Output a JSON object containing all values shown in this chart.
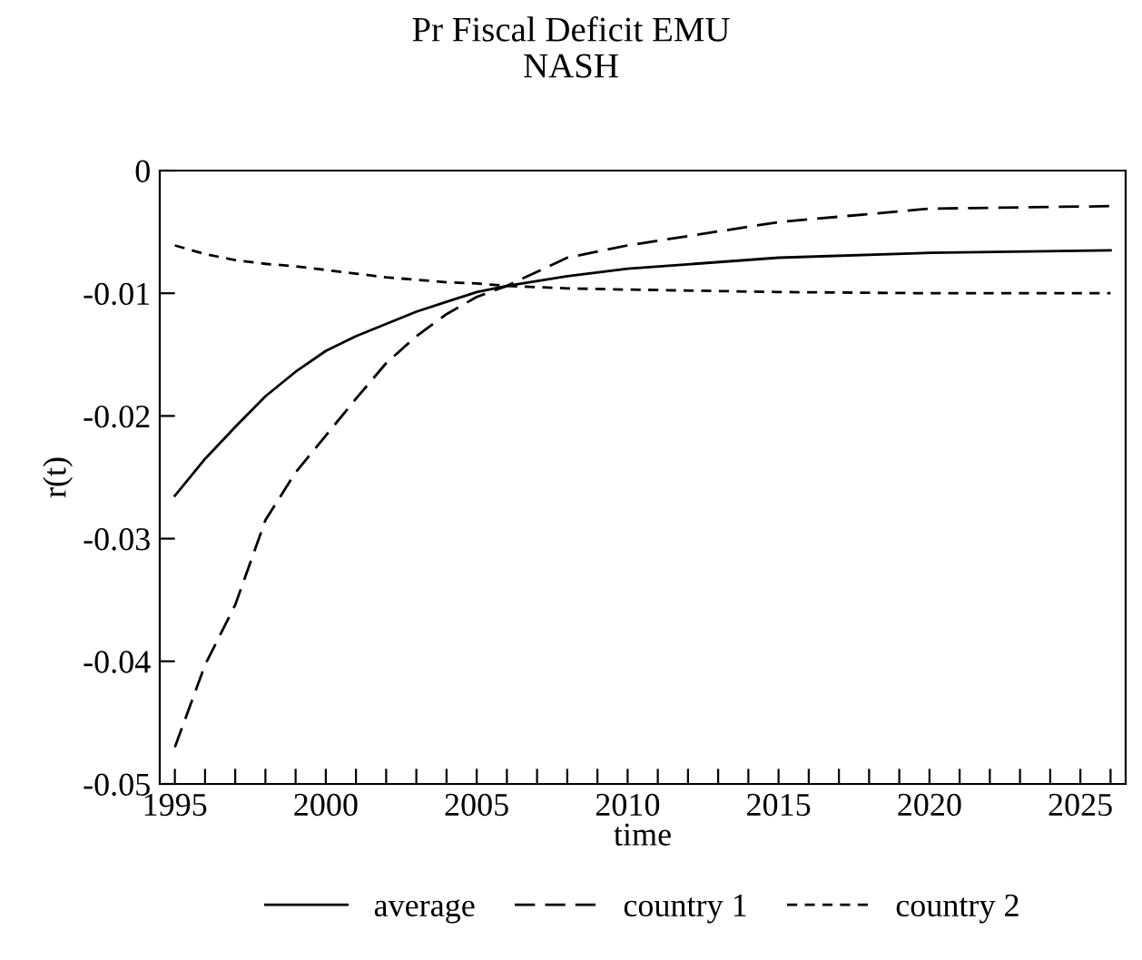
{
  "chart_data": {
    "type": "line",
    "title": "Pr Fiscal Deficit EMU",
    "subtitle": "NASH",
    "xlabel": "time",
    "ylabel": "r(t)",
    "xlim": [
      1994.5,
      2026.5
    ],
    "xticks": [
      {
        "value": 1995,
        "label": "1995"
      },
      {
        "value": 1996,
        "label": null
      },
      {
        "value": 1997,
        "label": null
      },
      {
        "value": 1998,
        "label": null
      },
      {
        "value": 1999,
        "label": null
      },
      {
        "value": 2000,
        "label": "2000"
      },
      {
        "value": 2001,
        "label": null
      },
      {
        "value": 2002,
        "label": null
      },
      {
        "value": 2003,
        "label": null
      },
      {
        "value": 2004,
        "label": null
      },
      {
        "value": 2005,
        "label": "2005"
      },
      {
        "value": 2006,
        "label": null
      },
      {
        "value": 2007,
        "label": null
      },
      {
        "value": 2008,
        "label": null
      },
      {
        "value": 2009,
        "label": null
      },
      {
        "value": 2010,
        "label": "2010"
      },
      {
        "value": 2011,
        "label": null
      },
      {
        "value": 2012,
        "label": null
      },
      {
        "value": 2013,
        "label": null
      },
      {
        "value": 2014,
        "label": null
      },
      {
        "value": 2015,
        "label": "2015"
      },
      {
        "value": 2016,
        "label": null
      },
      {
        "value": 2017,
        "label": null
      },
      {
        "value": 2018,
        "label": null
      },
      {
        "value": 2019,
        "label": null
      },
      {
        "value": 2020,
        "label": "2020"
      },
      {
        "value": 2021,
        "label": null
      },
      {
        "value": 2022,
        "label": null
      },
      {
        "value": 2023,
        "label": null
      },
      {
        "value": 2024,
        "label": null
      },
      {
        "value": 2025,
        "label": "2025"
      },
      {
        "value": 2026,
        "label": null
      }
    ],
    "ylim": [
      -0.05,
      0
    ],
    "yticks": [
      -0.05,
      -0.04,
      -0.03,
      -0.02,
      -0.01,
      0
    ],
    "grid": false,
    "legend": "bottom",
    "marker": "none",
    "x": [
      1995,
      1996,
      1997,
      1998,
      1999,
      2000,
      2001,
      2002,
      2003,
      2004,
      2005,
      2006,
      2008,
      2010,
      2015,
      2020,
      2026
    ],
    "series": [
      {
        "name": "average",
        "color": "#000000",
        "line_style": "solid",
        "values": [
          -0.0265,
          -0.0235,
          -0.0209,
          -0.0184,
          -0.0164,
          -0.0147,
          -0.0135,
          -0.0125,
          -0.0115,
          -0.0107,
          -0.0099,
          -0.0094,
          -0.0086,
          -0.008,
          -0.0071,
          -0.0067,
          -0.0065
        ]
      },
      {
        "name": "country 1",
        "color": "#000000",
        "line_style": "dashed",
        "values": [
          -0.047,
          -0.0403,
          -0.0354,
          -0.0285,
          -0.0246,
          -0.0216,
          -0.0186,
          -0.0157,
          -0.0135,
          -0.0117,
          -0.0103,
          -0.0094,
          -0.0071,
          -0.0061,
          -0.0042,
          -0.0031,
          -0.0029
        ]
      },
      {
        "name": "country 2",
        "color": "#000000",
        "line_style": "dotted",
        "values": [
          -0.0061,
          -0.0068,
          -0.0073,
          -0.0076,
          -0.0078,
          -0.0081,
          -0.0084,
          -0.0087,
          -0.0089,
          -0.0091,
          -0.0092,
          -0.0094,
          -0.0096,
          -0.0097,
          -0.0099,
          -0.01,
          -0.01
        ]
      }
    ]
  }
}
